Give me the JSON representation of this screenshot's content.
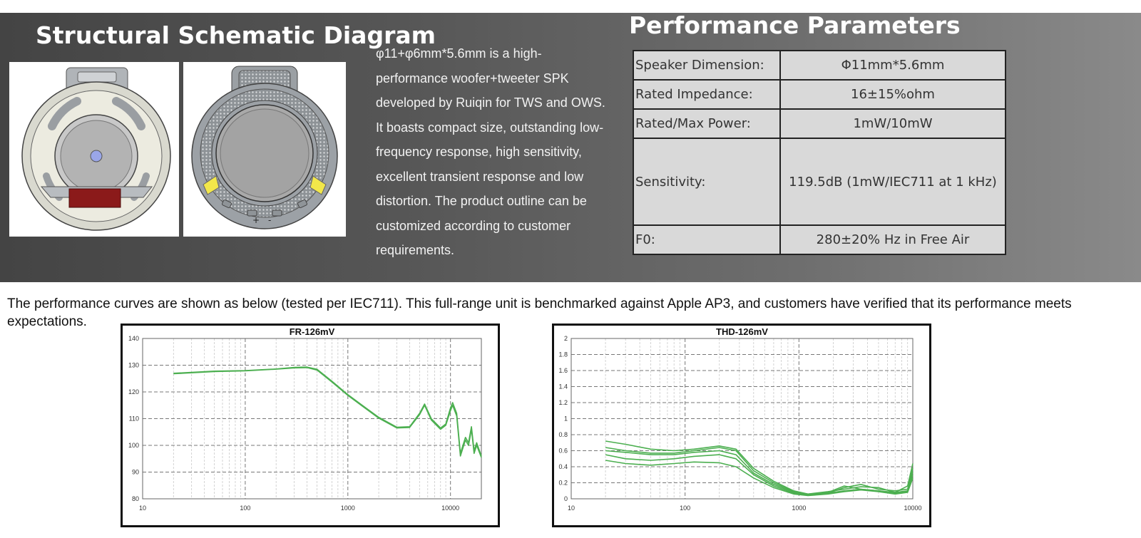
{
  "left_title": "Structural Schematic Diagram",
  "right_title": "Performance Parameters",
  "description_lines": [
    "φ11+φ6mm*5.6mm is a high-",
    "performance woofer+tweeter SPK",
    "developed by Ruiqin for TWS and OWS.",
    "It boasts compact size, outstanding low-",
    "frequency response, high sensitivity,",
    "excellent transient response and low",
    "distortion. The product outline can be",
    "customized according to customer",
    "requirements."
  ],
  "parameters": [
    {
      "label": "Speaker Dimension:",
      "value": "Φ11mm*5.6mm"
    },
    {
      "label": "Rated Impedance:",
      "value": "16±15%ohm"
    },
    {
      "label": "Rated/Max Power:",
      "value": "1mW/10mW"
    },
    {
      "label": "Sensitivity:",
      "value": "119.5dB (1mW/IEC711 at 1 kHz)"
    },
    {
      "label": "F0:",
      "value": "280±20% Hz  in Free Air"
    }
  ],
  "intro_text": "The performance curves are shown as below (tested per IEC711). This full-range unit is benchmarked against Apple AP3, and customers have verified that its performance meets expectations.",
  "diagram_marks": [
    "+",
    "-"
  ],
  "colors": {
    "curve": "#4caf50",
    "banner_dark": "#444444",
    "table_bg": "#d9d9d9"
  },
  "chart_data": [
    {
      "type": "line",
      "title": "FR-126mV",
      "x_scale": "log",
      "xlim": [
        10,
        20000
      ],
      "ylim": [
        80,
        140
      ],
      "x_ticks": [
        10,
        100,
        1000,
        10000
      ],
      "y_ticks": [
        80,
        90,
        100,
        110,
        120,
        130,
        140
      ],
      "grid": true,
      "series": [
        {
          "x": [
            20,
            50,
            100,
            200,
            300,
            400,
            500,
            700,
            1000,
            1500,
            2000,
            3000,
            4000,
            5000,
            5600,
            6500,
            8000,
            9000,
            10000,
            10500,
            11500,
            12500,
            14000,
            15000,
            16000,
            17000,
            18000,
            20000
          ],
          "y": [
            127,
            127.8,
            128,
            128.6,
            129.2,
            129.3,
            128.5,
            124,
            119,
            114,
            110.5,
            106.8,
            107,
            112,
            115.5,
            110,
            106.5,
            108,
            114,
            116,
            112,
            97,
            103,
            101,
            107,
            98,
            101,
            96
          ]
        },
        {
          "x": [
            20,
            50,
            100,
            200,
            300,
            400,
            500,
            700,
            1000,
            1500,
            2000,
            3000,
            4000,
            5000,
            5600,
            6500,
            8000,
            9000,
            10000,
            10500,
            11500,
            12500,
            14000,
            15000,
            16000,
            17000,
            18000,
            20000
          ],
          "y": [
            126.8,
            127.6,
            127.9,
            128.5,
            129,
            129.1,
            128.2,
            123.7,
            118.7,
            113.7,
            110.2,
            106.5,
            106.7,
            111.5,
            115,
            109.5,
            106,
            107.5,
            113,
            115,
            111,
            96,
            102,
            100,
            106,
            97,
            100,
            95.5
          ]
        }
      ]
    },
    {
      "type": "line",
      "title": "THD-126mV",
      "x_scale": "log",
      "xlim": [
        10,
        10000
      ],
      "ylim": [
        0,
        2
      ],
      "x_ticks": [
        10,
        100,
        1000,
        10000
      ],
      "y_ticks": [
        0,
        0.2,
        0.4,
        0.6,
        0.8,
        1,
        1.2,
        1.4,
        1.6,
        1.8,
        2
      ],
      "grid": true,
      "series": [
        {
          "x": [
            20,
            30,
            50,
            80,
            120,
            200,
            280,
            400,
            600,
            900,
            1200,
            1800,
            2500,
            3500,
            5000,
            7000,
            9000,
            10000
          ],
          "y": [
            0.72,
            0.68,
            0.62,
            0.6,
            0.62,
            0.66,
            0.62,
            0.38,
            0.22,
            0.1,
            0.06,
            0.08,
            0.16,
            0.12,
            0.1,
            0.08,
            0.16,
            0.44
          ]
        },
        {
          "x": [
            20,
            30,
            50,
            80,
            120,
            200,
            280,
            400,
            600,
            900,
            1200,
            1800,
            2500,
            3500,
            5000,
            7000,
            9000,
            10000
          ],
          "y": [
            0.64,
            0.6,
            0.57,
            0.57,
            0.6,
            0.64,
            0.6,
            0.35,
            0.2,
            0.09,
            0.05,
            0.07,
            0.14,
            0.18,
            0.12,
            0.1,
            0.12,
            0.38
          ]
        },
        {
          "x": [
            20,
            30,
            50,
            80,
            120,
            200,
            280,
            400,
            600,
            900,
            1200,
            1800,
            2500,
            3500,
            5000,
            7000,
            9000,
            10000
          ],
          "y": [
            0.6,
            0.58,
            0.55,
            0.55,
            0.58,
            0.6,
            0.55,
            0.32,
            0.18,
            0.08,
            0.06,
            0.09,
            0.12,
            0.15,
            0.14,
            0.08,
            0.1,
            0.34
          ]
        },
        {
          "x": [
            20,
            30,
            50,
            80,
            120,
            200,
            280,
            400,
            600,
            900,
            1200,
            1800,
            2500,
            3500,
            5000,
            7000,
            9000,
            10000
          ],
          "y": [
            0.55,
            0.5,
            0.48,
            0.5,
            0.53,
            0.55,
            0.5,
            0.3,
            0.16,
            0.07,
            0.05,
            0.07,
            0.1,
            0.12,
            0.1,
            0.07,
            0.09,
            0.3
          ]
        },
        {
          "x": [
            20,
            30,
            50,
            80,
            120,
            200,
            280,
            400,
            600,
            900,
            1200,
            1800,
            2500,
            3500,
            5000,
            7000,
            9000,
            10000
          ],
          "y": [
            0.48,
            0.44,
            0.42,
            0.44,
            0.46,
            0.45,
            0.4,
            0.26,
            0.14,
            0.06,
            0.04,
            0.06,
            0.09,
            0.11,
            0.09,
            0.06,
            0.08,
            0.26
          ]
        }
      ]
    }
  ]
}
